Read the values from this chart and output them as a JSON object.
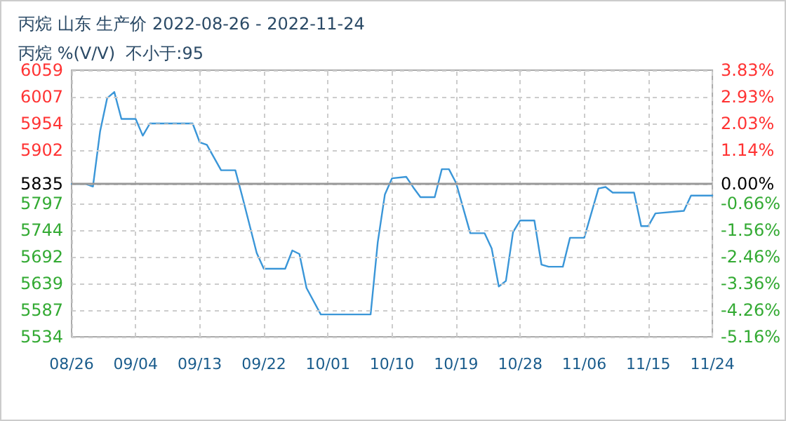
{
  "chart_data": {
    "type": "line",
    "title": "丙烷 山东 生产价 2022-08-26 - 2022-11-24",
    "subtitle": "丙烷 %(V/V)  不小于:95",
    "x": [
      "--08-26",
      "--08-28",
      "--08-29",
      "--08-30",
      "--08-31",
      "--09-01",
      "--09-02",
      "--09-04",
      "--09-05",
      "--09-06",
      "--09-12",
      "--09-13",
      "--09-14",
      "--09-16",
      "--09-18",
      "--09-19",
      "--09-21",
      "--09-22",
      "--09-25",
      "--09-26",
      "--09-27",
      "--09-28",
      "--09-30",
      "--10-07",
      "--10-08",
      "--10-09",
      "--10-10",
      "--10-12",
      "--10-13",
      "--10-14",
      "--10-16",
      "--10-17",
      "--10-18",
      "--10-19",
      "--10-21",
      "--10-23",
      "--10-24",
      "--10-25",
      "--10-26",
      "--10-27",
      "--10-28",
      "--10-30",
      "--10-31",
      "--11-01",
      "--11-03",
      "--11-04",
      "--11-06",
      "--11-08",
      "--11-09",
      "--11-10",
      "--11-13",
      "--11-14",
      "--11-15",
      "--11-16",
      "--11-20",
      "--11-21",
      "--11-24"
    ],
    "series": [
      {
        "color": "#3a96d8",
        "values": [
          5835,
          5835,
          5830,
          5938,
          6004,
          6016,
          5963,
          5963,
          5930,
          5954,
          5954,
          5917,
          5912,
          5862,
          5862,
          5809,
          5699,
          5668,
          5668,
          5704,
          5697,
          5630,
          5578,
          5578,
          5720,
          5814,
          5846,
          5849,
          5828,
          5809,
          5809,
          5864,
          5864,
          5837,
          5738,
          5738,
          5708,
          5633,
          5644,
          5740,
          5763,
          5763,
          5676,
          5672,
          5672,
          5729,
          5729,
          5826,
          5829,
          5818,
          5818,
          5752,
          5752,
          5777,
          5782,
          5812,
          5812
        ]
      }
    ],
    "xlim": [
      "--08-26",
      "--11-24"
    ],
    "xticks": [
      {
        "value": "--08-26",
        "label": "08/26"
      },
      {
        "value": "--09-04",
        "label": "09/04"
      },
      {
        "value": "--09-13",
        "label": "09/13"
      },
      {
        "value": "--09-22",
        "label": "09/22"
      },
      {
        "value": "--10-01",
        "label": "10/01"
      },
      {
        "value": "--10-10",
        "label": "10/10"
      },
      {
        "value": "--10-19",
        "label": "10/19"
      },
      {
        "value": "--10-28",
        "label": "10/28"
      },
      {
        "value": "--11-06",
        "label": "11/06"
      },
      {
        "value": "--11-15",
        "label": "11/15"
      },
      {
        "value": "--11-24",
        "label": "11/24"
      }
    ],
    "ylim": [
      5534,
      6059
    ],
    "yticks": [
      5534,
      {
        "value": 5586.5,
        "label": "5587"
      },
      5639,
      {
        "value": 5691.5,
        "label": "5692"
      },
      5744,
      {
        "value": 5796.5,
        "label": "5797"
      },
      5835,
      {
        "value": 5901.5,
        "label": "5902"
      },
      5954,
      {
        "value": 6006.5,
        "label": "6007"
      },
      6059
    ],
    "y2lim": [
      -5.16,
      3.83
    ],
    "y2ticks": [
      {
        "value": -5.16,
        "label": "-5.16%"
      },
      {
        "value": -4.26,
        "label": "-4.26%"
      },
      {
        "value": -3.36,
        "label": "-3.36%"
      },
      {
        "value": -2.46,
        "label": "-2.46%"
      },
      {
        "value": -1.56,
        "label": "-1.56%"
      },
      {
        "value": -0.66,
        "label": "-0.66%"
      },
      {
        "value": 0,
        "label": "0.00%"
      },
      {
        "value": 1.14,
        "label": "1.14%"
      },
      {
        "value": 2.03,
        "label": "2.03%"
      },
      {
        "value": 2.93,
        "label": "2.93%"
      },
      {
        "value": 3.83,
        "label": "3.83%"
      }
    ],
    "ref_lines": [
      {
        "axis": "y",
        "value": 5835,
        "color": "#999999"
      }
    ],
    "grid": true,
    "marker": "none",
    "line_style": "solid"
  }
}
